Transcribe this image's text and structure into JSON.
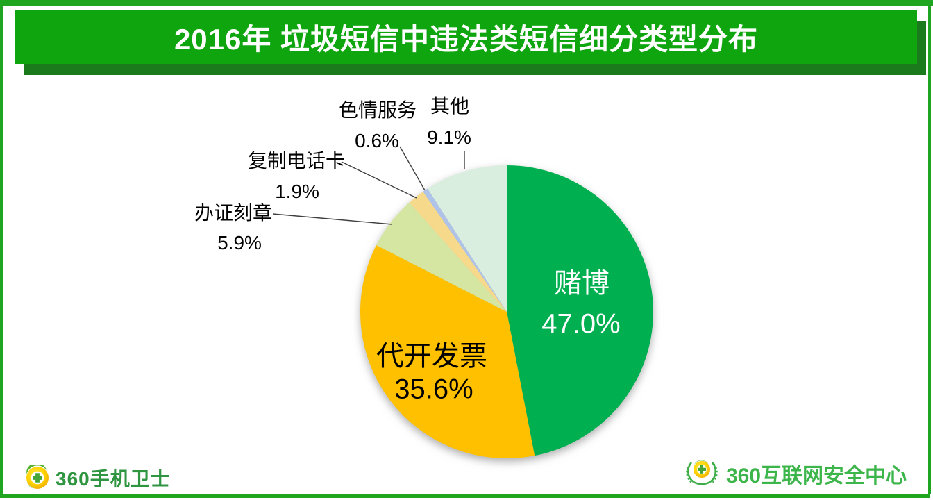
{
  "header": {
    "title": "2016年 垃圾短信中违法类短信细分类型分布"
  },
  "chart_data": {
    "type": "pie",
    "title": "2016年 垃圾短信中违法类短信细分类型分布",
    "direction": "clockwise",
    "start_angle_deg": 0,
    "legend": "none",
    "center": [
      730,
      449
    ],
    "radius": 211,
    "slices": [
      {
        "label": "赌博",
        "value": 47.0,
        "display": "47.0%",
        "color": "#00B050",
        "label_placement": "inside",
        "text_color": "#FFFFFF"
      },
      {
        "label": "代开发票",
        "value": 35.6,
        "display": "35.6%",
        "color": "#FFC000",
        "label_placement": "inside",
        "text_color": "#000000"
      },
      {
        "label": "办证刻章",
        "value": 5.9,
        "display": "5.9%",
        "color": "#D5E6A2",
        "label_placement": "outside",
        "text_color": "#000000"
      },
      {
        "label": "复制电话卡",
        "value": 1.9,
        "display": "1.9%",
        "color": "#F7D98B",
        "label_placement": "outside",
        "text_color": "#000000"
      },
      {
        "label": "色情服务",
        "value": 0.6,
        "display": "0.6%",
        "color": "#AEC3E7",
        "label_placement": "outside",
        "text_color": "#000000"
      },
      {
        "label": "其他",
        "value": 9.1,
        "display": "9.1%",
        "color": "#D9EEDF",
        "label_placement": "outside",
        "text_color": "#000000"
      }
    ]
  },
  "footer": {
    "left_logo": {
      "text": "360手机卫士",
      "icon": "360-ball-icon"
    },
    "right_logo": {
      "text": "360互联网安全中心",
      "icon": "360-laurel-emblem-icon"
    }
  },
  "colors": {
    "banner_green": "#0FA50F",
    "banner_shadow": "#1B7A1B",
    "frame_green": "#1FA51F",
    "leader_line": "#3F3F3F",
    "logo_left_green": "#2F9540",
    "logo_right_green": "#3CB54A"
  }
}
